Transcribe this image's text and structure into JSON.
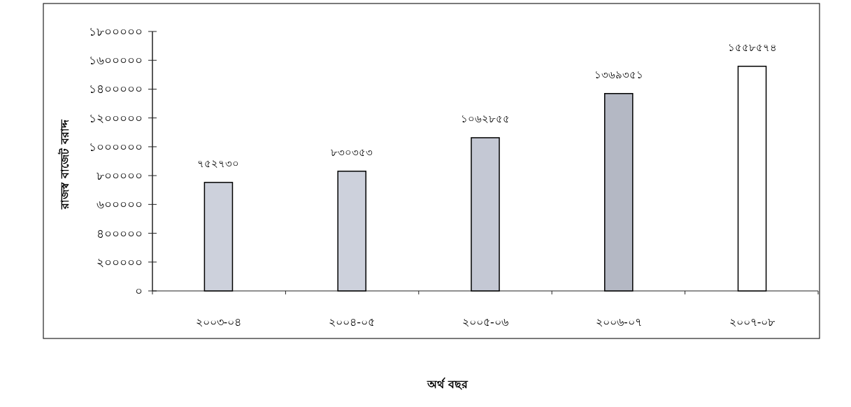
{
  "chart_data": {
    "type": "bar",
    "xlabel": "অর্থ বছর",
    "ylabel": "রাজস্ব বাজেট বরাদ্দ",
    "categories": [
      "২০০৩-০৪",
      "২০০৪-০৫",
      "২০০৫-০৬",
      "২০০৬-০৭",
      "২০০৭-০৮"
    ],
    "values": [
      752730,
      830353,
      1062855,
      1369351,
      1558574
    ],
    "value_labels": [
      "৭৫২৭৩০",
      "৮৩০৩৫৩",
      "১০৬২৮৫৫",
      "১৩৬৯৩৫১",
      "১৫৫৮৫৭৪"
    ],
    "colors": [
      "#cdd1dc",
      "#cdd1dc",
      "#c4c8d4",
      "#b4b8c4",
      "#ffffff"
    ],
    "ylim": [
      0,
      1800000
    ],
    "yticks": [
      {
        "value": 0,
        "label": "০"
      },
      {
        "value": 200000,
        "label": "২০০০০০"
      },
      {
        "value": 400000,
        "label": "৪০০০০০"
      },
      {
        "value": 600000,
        "label": "৬০০০০০"
      },
      {
        "value": 800000,
        "label": "৮০০০০০"
      },
      {
        "value": 1000000,
        "label": "১০০০০০০"
      },
      {
        "value": 1200000,
        "label": "১২০০০০০"
      },
      {
        "value": 1400000,
        "label": "১৪০০০০০"
      },
      {
        "value": 1600000,
        "label": "১৬০০০০০"
      },
      {
        "value": 1800000,
        "label": "১৮০০০০০"
      }
    ],
    "grid": false
  }
}
